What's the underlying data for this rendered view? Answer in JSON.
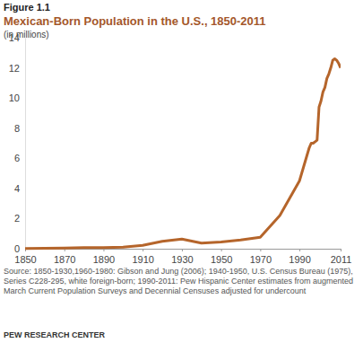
{
  "chart_data": {
    "type": "line",
    "figure_label": "Figure 1.1",
    "title": "Mexican-Born Population in the U.S., 1850-2011",
    "subtitle": "(in millions)",
    "source": "Source: 1850-1930,1960-1980: Gibson and Jung (2006); 1940-1950, U.S. Census Bureau (1975), Series C228-295, white foreign-born; 1990-2011: Pew Hispanic Center estimates from augmented March Current Population Surveys and Decennial Censuses adjusted for undercount",
    "credit": "PEW RESEARCH CENTER",
    "x": [
      1850,
      1860,
      1870,
      1880,
      1890,
      1900,
      1910,
      1920,
      1930,
      1940,
      1950,
      1960,
      1970,
      1980,
      1990,
      1995,
      1996,
      1997,
      1998,
      1999,
      2000,
      2001,
      2002,
      2003,
      2004,
      2005,
      2006,
      2007,
      2008,
      2009,
      2010,
      2011
    ],
    "series": [
      {
        "name": "Mexican-born population",
        "color": "#b5652b",
        "values": [
          0.013,
          0.027,
          0.042,
          0.068,
          0.078,
          0.103,
          0.222,
          0.486,
          0.641,
          0.377,
          0.451,
          0.576,
          0.76,
          2.199,
          4.5,
          6.7,
          7.0,
          7.0,
          7.1,
          7.2,
          9.4,
          9.8,
          10.4,
          10.7,
          11.3,
          11.6,
          12.0,
          12.5,
          12.6,
          12.5,
          12.3,
          12.0
        ]
      }
    ],
    "xlim": [
      1850,
      2011
    ],
    "xticks": [
      1850,
      1870,
      1890,
      1910,
      1930,
      1950,
      1970,
      1990,
      2011
    ],
    "ylim": [
      0,
      14
    ],
    "yticks": [
      0,
      2,
      4,
      6,
      8,
      10,
      12,
      14
    ],
    "grid": false,
    "line_style": "solid"
  }
}
